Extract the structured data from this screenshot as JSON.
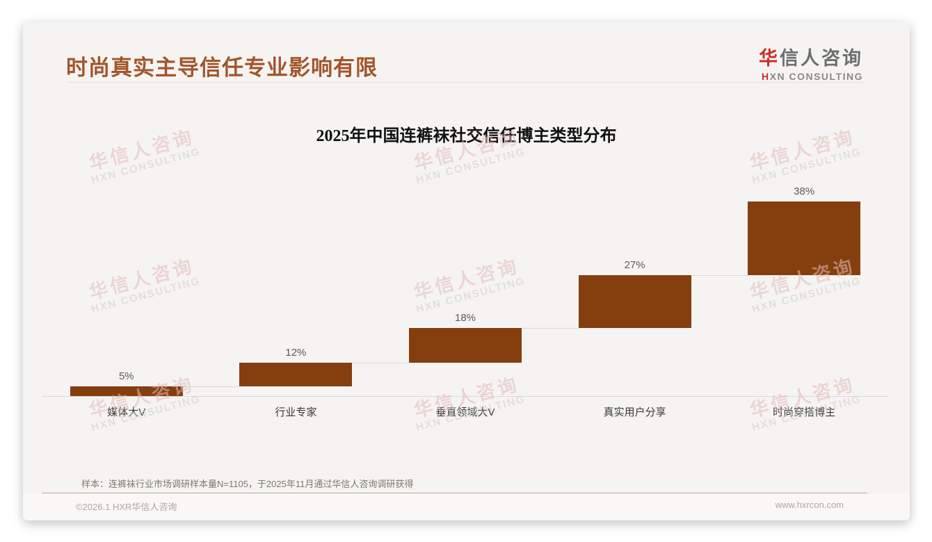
{
  "page": {
    "title": "时尚真实主导信任专业影响有限",
    "logo": {
      "line1_accent": "华",
      "line1_rest": "信人咨询",
      "line2_accent": "H",
      "line2_rest": "XN CONSULTING"
    },
    "watermark": {
      "line1": "华信人咨询",
      "line2": "HXN CONSULTING"
    },
    "note": "样本：连裤袜行业市场调研样本量N=1105，于2025年11月通过华信人咨询调研获得",
    "footer": {
      "copyright": "©2026.1 HXR华信人咨询",
      "website": "www.hxrcon.com"
    }
  },
  "colors": {
    "bar_brown": "#853E0E",
    "page_title_brown": "#A2552B",
    "logo_red": "#CC2B26",
    "footer_line_brown": "#C4A48D",
    "connector_gray": "#D8D8D8"
  },
  "chart_data": {
    "type": "bar",
    "subtype": "waterfall-cumulative-steps",
    "title": "2025年中国连裤袜社交信任博主类型分布",
    "categories": [
      "媒体大V",
      "行业专家",
      "垂直领域大V",
      "真实用户分享",
      "时尚穿搭博主"
    ],
    "values": [
      5,
      12,
      18,
      27,
      38
    ],
    "labels": [
      "5%",
      "12%",
      "18%",
      "27%",
      "38%"
    ],
    "cumulative_levels": [
      5,
      17,
      35,
      62,
      100
    ],
    "ylim": [
      0,
      100
    ],
    "bar_color": "#853E0E",
    "grid": false,
    "legend": false,
    "xlabel": "",
    "ylabel": ""
  }
}
